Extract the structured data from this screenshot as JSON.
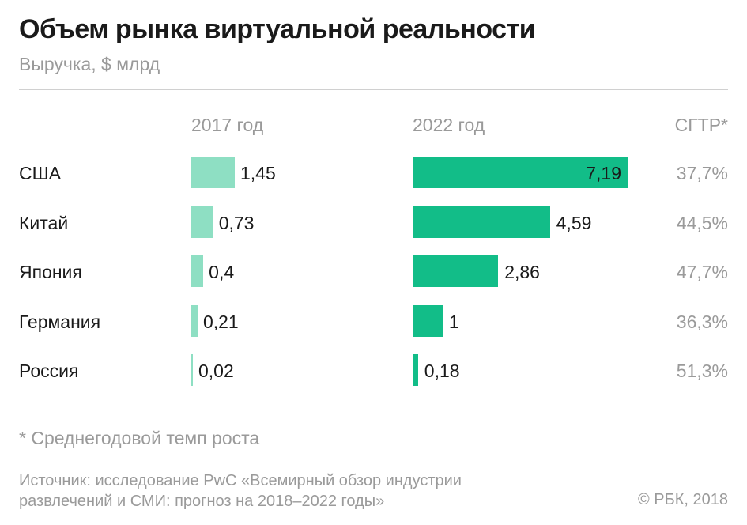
{
  "chart_data": {
    "type": "bar",
    "title": "Объем рынка виртуальной реальности",
    "subtitle": "Выручка, $ млрд",
    "categories": [
      "США",
      "Китай",
      "Япония",
      "Германия",
      "Россия"
    ],
    "series": [
      {
        "name": "2017 год",
        "values": [
          1.45,
          0.73,
          0.4,
          0.21,
          0.02
        ],
        "labels": [
          "1,45",
          "0,73",
          "0,4",
          "0,21",
          "0,02"
        ],
        "color": "#8edfc3"
      },
      {
        "name": "2022 год",
        "values": [
          7.19,
          4.59,
          2.86,
          1,
          0.18
        ],
        "labels": [
          "7,19",
          "4,59",
          "2,86",
          "1",
          "0,18"
        ],
        "color": "#12bd88"
      }
    ],
    "cagr_header": "СГТР*",
    "cagr": [
      "37,7%",
      "44,5%",
      "47,7%",
      "36,3%",
      "51,3%"
    ],
    "footnote": "* Среднегодовой темп роста"
  },
  "source_lines": [
    "Источник: исследование PwC «Всемирный обзор индустрии",
    "развлечений и СМИ: прогноз на 2018–2022 годы»"
  ],
  "copyright": "© РБК, 2018"
}
